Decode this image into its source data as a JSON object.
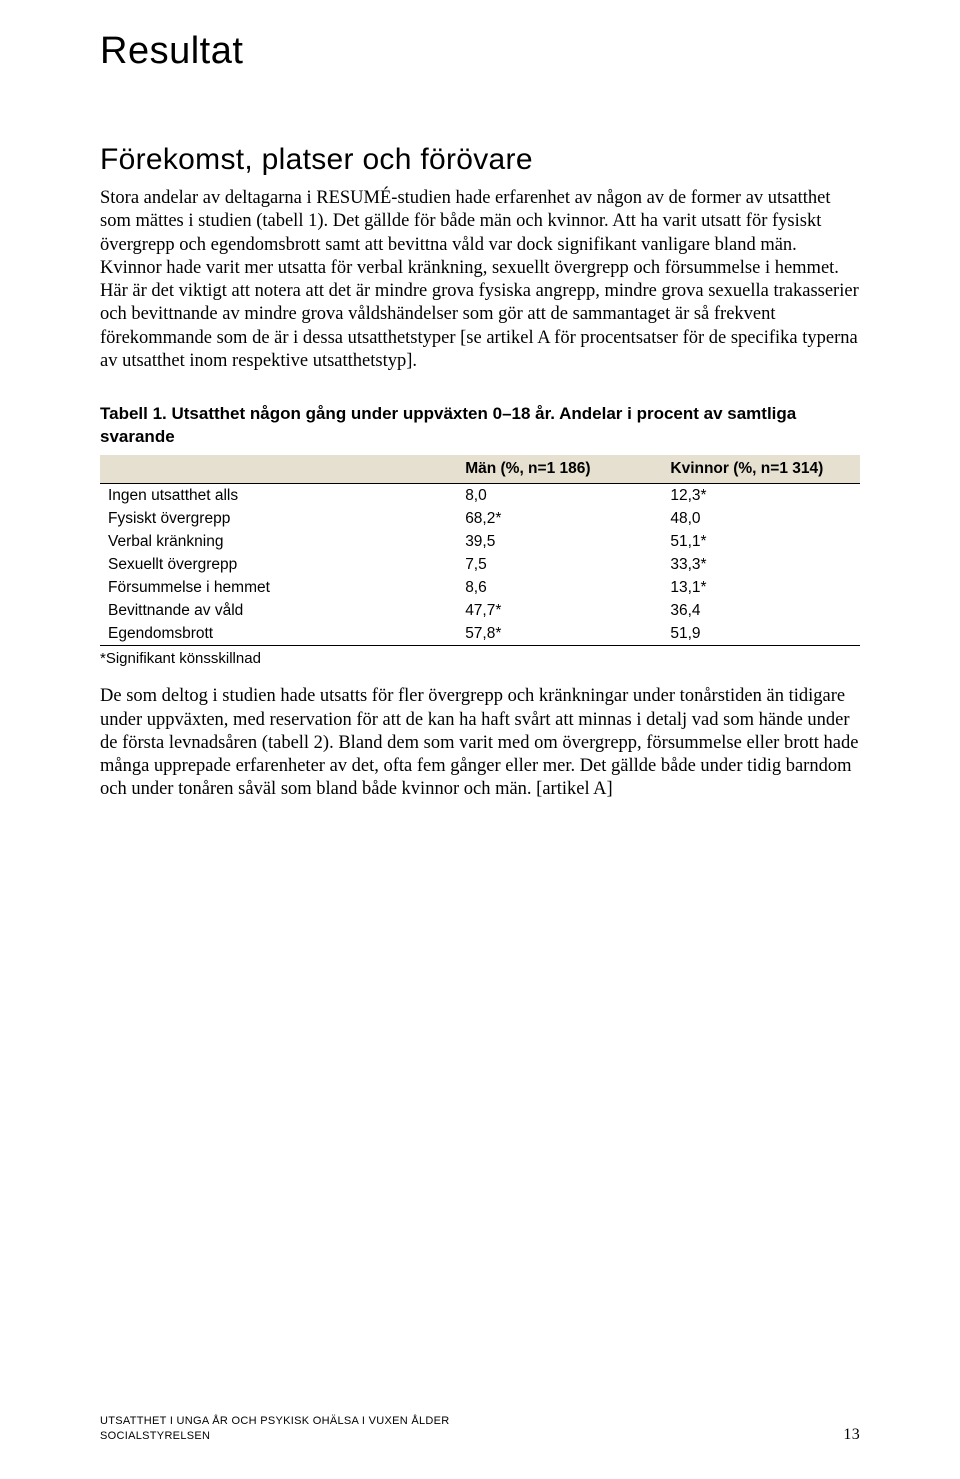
{
  "title": "Resultat",
  "section_heading": "Förekomst, platser och förövare",
  "para1": "Stora andelar av deltagarna i RESUMÉ-studien hade erfarenhet av någon av de former av utsatthet som mättes i studien (tabell 1). Det gällde för både män och kvinnor. Att ha varit utsatt för fysiskt övergrepp och egendomsbrott samt att bevittna våld var dock signifikant vanligare bland män. Kvinnor hade varit mer utsatta för verbal kränkning, sexuellt övergrepp och försummelse i hemmet. Här är det viktigt att notera att det är mindre grova fysiska angrepp, mindre grova sexuella trakasserier och bevittnande av mindre grova våldshändelser som gör att de sammantaget är så frekvent förekommande som de är i dessa utsatthetstyper [se artikel A för procentsatser för de specifika typerna av utsatthet inom respektive utsatthetstyp].",
  "table": {
    "caption": "Tabell 1. Utsatthet någon gång under uppväxten 0–18 år. Andelar i procent av samtliga svarande",
    "headers": {
      "col1": "",
      "col2": "Män (%, n=1 186)",
      "col3": "Kvinnor (%, n=1 314)"
    },
    "rows": [
      {
        "label": "Ingen utsatthet alls",
        "men": "8,0",
        "women": "12,3*"
      },
      {
        "label": "Fysiskt övergrepp",
        "men": "68,2*",
        "women": "48,0"
      },
      {
        "label": "Verbal kränkning",
        "men": "39,5",
        "women": "51,1*"
      },
      {
        "label": "Sexuellt övergrepp",
        "men": "7,5",
        "women": "33,3*"
      },
      {
        "label": "Försummelse i hemmet",
        "men": "8,6",
        "women": "13,1*"
      },
      {
        "label": "Bevittnande av våld",
        "men": "47,7*",
        "women": "36,4"
      },
      {
        "label": "Egendomsbrott",
        "men": "57,8*",
        "women": "51,9"
      }
    ],
    "note": "*Signifikant könsskillnad"
  },
  "para2": "De som deltog i studien hade utsatts för fler övergrepp och kränkningar under tonårstiden än tidigare under uppväxten, med reservation för att de kan ha haft svårt att minnas i detalj vad som hände under de första levnadsåren (tabell 2). Bland dem som varit med om övergrepp, försummelse eller brott hade många upprepade erfarenheter av det, ofta fem gånger eller mer. Det gällde både under tidig barndom och under tonåren såväl som bland både kvinnor och män. [artikel A]",
  "footer": {
    "line1": "UTSATTHET I UNGA ÅR OCH PSYKISK OHÄLSA I VUXEN ÅLDER",
    "line2": "SOCIALSTYRELSEN",
    "page": "13"
  }
}
